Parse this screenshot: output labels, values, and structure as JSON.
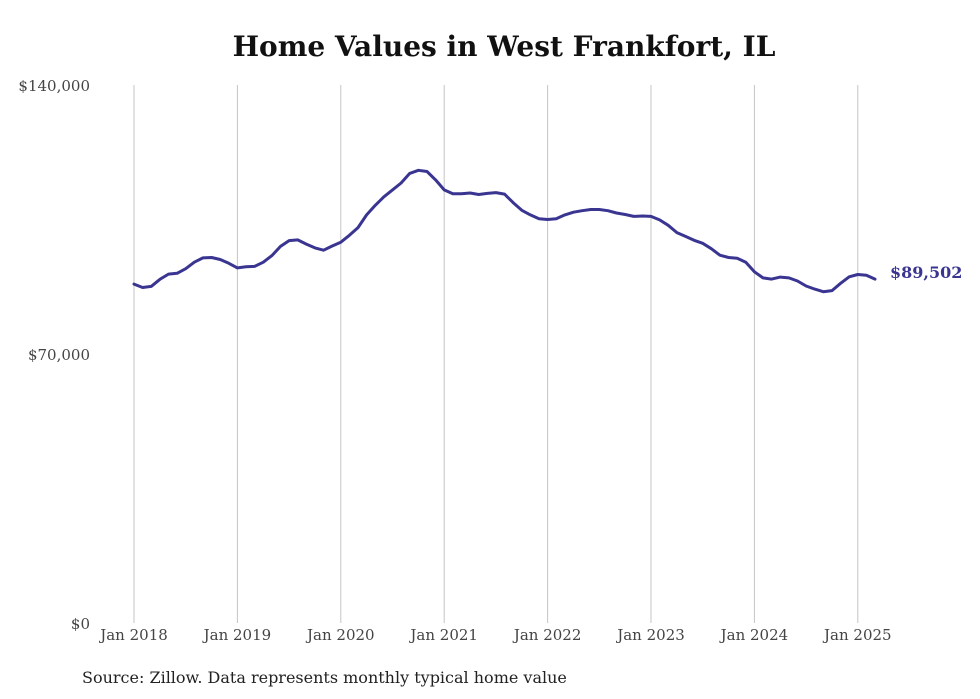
{
  "chart_data": {
    "type": "line",
    "title": "Home Values in West Frankfort, IL",
    "xlabel": "",
    "ylabel": "",
    "x_tick_labels": [
      "Jan 2018",
      "Jan 2019",
      "Jan 2020",
      "Jan 2021",
      "Jan 2022",
      "Jan 2023",
      "Jan 2024",
      "Jan 2025"
    ],
    "y_tick_labels": [
      "$0",
      "$70,000",
      "$140,000"
    ],
    "y_ticks": [
      0,
      70000,
      140000
    ],
    "ylim": [
      0,
      140000
    ],
    "xlim": [
      "2018-01",
      "2025-03"
    ],
    "grid": "vertical",
    "line_color": "#3a3591",
    "end_label": "$89,502",
    "series": [
      {
        "x": [
          "2018-01",
          "2018-02",
          "2018-03",
          "2018-04",
          "2018-05",
          "2018-06",
          "2018-07",
          "2018-08",
          "2018-09",
          "2018-10",
          "2018-11",
          "2018-12",
          "2019-01",
          "2019-02",
          "2019-03",
          "2019-04",
          "2019-05",
          "2019-06",
          "2019-07",
          "2019-08",
          "2019-09",
          "2019-10",
          "2019-11",
          "2019-12",
          "2020-01",
          "2020-02",
          "2020-03",
          "2020-04",
          "2020-05",
          "2020-06",
          "2020-07",
          "2020-08",
          "2020-09",
          "2020-10",
          "2020-11",
          "2020-12",
          "2021-01",
          "2021-02",
          "2021-03",
          "2021-04",
          "2021-05",
          "2021-06",
          "2021-07",
          "2021-08",
          "2021-09",
          "2021-10",
          "2021-11",
          "2021-12",
          "2022-01",
          "2022-02",
          "2022-03",
          "2022-04",
          "2022-05",
          "2022-06",
          "2022-07",
          "2022-08",
          "2022-09",
          "2022-10",
          "2022-11",
          "2022-12",
          "2023-01",
          "2023-02",
          "2023-03",
          "2023-04",
          "2023-05",
          "2023-06",
          "2023-07",
          "2023-08",
          "2023-09",
          "2023-10",
          "2023-11",
          "2023-12",
          "2024-01",
          "2024-02",
          "2024-03",
          "2024-04",
          "2024-05",
          "2024-06",
          "2024-07",
          "2024-08",
          "2024-09",
          "2024-10",
          "2024-11",
          "2024-12",
          "2025-01",
          "2025-02",
          "2025-03"
        ],
        "values": [
          88200,
          87300,
          87600,
          89400,
          90800,
          91000,
          92200,
          93900,
          95000,
          95100,
          94600,
          93600,
          92400,
          92700,
          92800,
          93900,
          95600,
          98000,
          99500,
          99700,
          98600,
          97600,
          97000,
          98100,
          99100,
          100900,
          102900,
          106200,
          108700,
          110900,
          112700,
          114500,
          117000,
          117800,
          117500,
          115300,
          112700,
          111700,
          111700,
          111900,
          111500,
          111800,
          112000,
          111600,
          109400,
          107400,
          106200,
          105200,
          105000,
          105200,
          106200,
          106900,
          107300,
          107600,
          107600,
          107300,
          106700,
          106300,
          105800,
          105900,
          105800,
          104900,
          103500,
          101600,
          100600,
          99600,
          98800,
          97400,
          95700,
          95100,
          94900,
          93900,
          91400,
          89800,
          89500,
          90000,
          89800,
          89000,
          87700,
          86900,
          86200,
          86500,
          88400,
          90100,
          90700,
          90500,
          89502
        ]
      }
    ]
  },
  "footer": {
    "source": "Source: Zillow. Data represents monthly typical home value"
  }
}
